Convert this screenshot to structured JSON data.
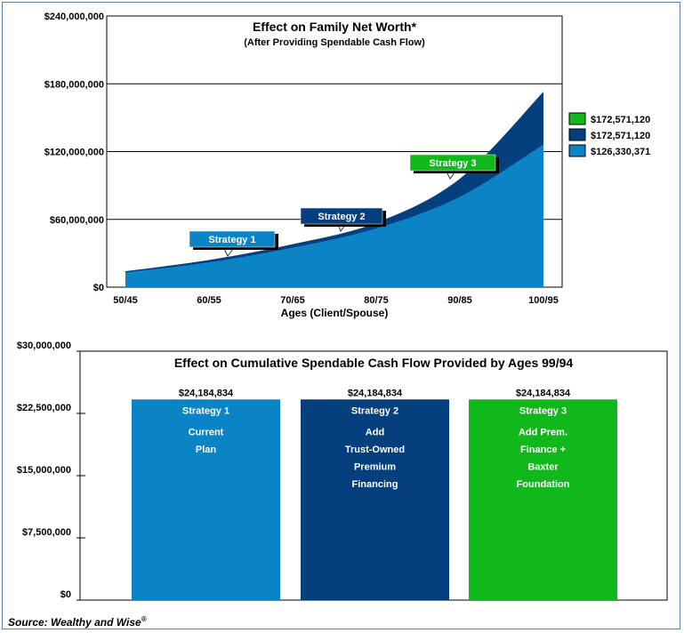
{
  "colors": {
    "strategy1": "#0b84c6",
    "strategy2": "#063f7e",
    "strategy3": "#11b81c"
  },
  "chart_data": [
    {
      "type": "area",
      "title": "Effect on Family Net Worth*",
      "subtitle": "(After Providing Spendable Cash Flow)",
      "xlabel": "Ages (Client/Spouse)",
      "ylabel": "",
      "x": [
        "50/45",
        "60/55",
        "70/65",
        "80/75",
        "90/85",
        "100/95"
      ],
      "ylim": [
        0,
        240000000
      ],
      "yticks": [
        "$0",
        "$60,000,000",
        "$120,000,000",
        "$180,000,000",
        "$240,000,000"
      ],
      "legend": [
        "$172,571,120",
        "$172,571,120",
        "$126,330,371"
      ],
      "series": [
        {
          "name": "Strategy 3",
          "values": [
            14000000,
            24000000,
            38000000,
            57000000,
            96000000,
            173000000
          ]
        },
        {
          "name": "Strategy 2",
          "values": [
            14000000,
            24000000,
            38000000,
            56000000,
            93000000,
            172571120
          ]
        },
        {
          "name": "Strategy 1",
          "values": [
            13000000,
            22000000,
            35000000,
            52000000,
            80000000,
            126330371
          ]
        }
      ],
      "annotations": [
        "Strategy 1",
        "Strategy 2",
        "Strategy 3"
      ]
    },
    {
      "type": "bar",
      "title": "Effect on Cumulative Spendable Cash Flow Provided by Ages 99/94",
      "ylim": [
        0,
        30000000
      ],
      "yticks": [
        "$0",
        "$7,500,000",
        "$15,000,000",
        "$22,500,000",
        "$30,000,000"
      ],
      "categories": [
        "Strategy 1",
        "Strategy 2",
        "Strategy 3"
      ],
      "values": [
        24184834,
        24184834,
        24184834
      ],
      "value_labels": [
        "$24,184,834",
        "$24,184,834",
        "$24,184,834"
      ],
      "descriptions": [
        [
          "Current",
          "Plan"
        ],
        [
          "Add",
          "Trust-Owned",
          "Premium",
          "Financing"
        ],
        [
          "Add Prem.",
          "Finance +",
          "Baxter",
          "Foundation"
        ]
      ]
    }
  ],
  "source": {
    "text": "Source: Wealthy and Wise",
    "mark": "®"
  }
}
